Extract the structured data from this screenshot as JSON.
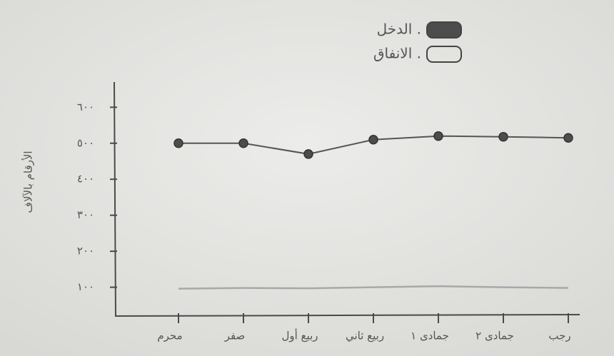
{
  "chart_data": {
    "type": "line",
    "y_label": "الأرقام بالآلاف",
    "categories": [
      "محرم",
      "صفر",
      "ربيع أول",
      "ربيع ثاني",
      "جمادى ١",
      "جمادى ٢",
      "رجب"
    ],
    "series": [
      {
        "name": "الدخل .",
        "color": "#555555",
        "values": [
          500,
          500,
          470,
          510,
          520,
          518,
          515
        ]
      },
      {
        "name": "الانفاق .",
        "color": "#a8a8a8",
        "values": [
          96,
          98,
          97,
          100,
          103,
          100,
          98
        ]
      }
    ],
    "ylim": [
      20,
      670
    ],
    "yticks": [
      {
        "value": 100,
        "label": "١٠٠"
      },
      {
        "value": 200,
        "label": "٢٠٠"
      },
      {
        "value": 300,
        "label": "٣٠٠"
      },
      {
        "value": 400,
        "label": "٤٠٠"
      },
      {
        "value": 500,
        "label": "٥٠٠"
      },
      {
        "value": 600,
        "label": "٦٠٠"
      }
    ],
    "legend": "top-right"
  }
}
